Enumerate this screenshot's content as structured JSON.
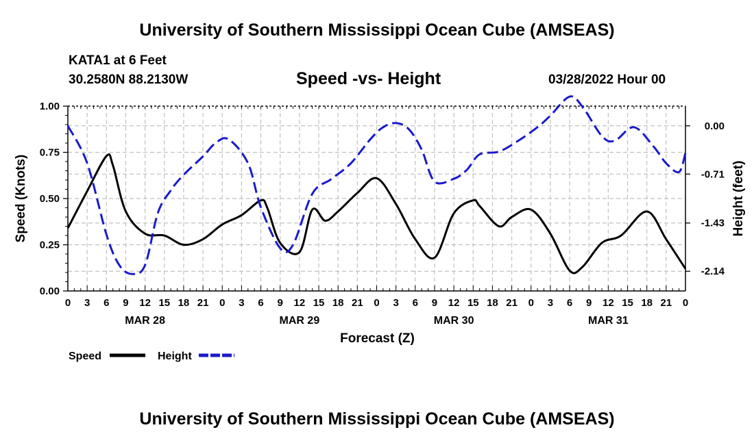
{
  "header": {
    "title": "University of Southern Mississippi Ocean Cube (AMSEAS)",
    "station": "KATA1 at 6 Feet",
    "coords": "30.2580N  88.2130W",
    "subtitle": "Speed -vs- Height",
    "date": "03/28/2022 Hour 00"
  },
  "footer": {
    "title": "University of Southern Mississippi Ocean Cube (AMSEAS)"
  },
  "chart_data": {
    "type": "line",
    "title": "Speed -vs- Height",
    "xlabel": "Forecast (Z)",
    "ylabel": "Speed (Knots)",
    "y2label": "Height (feet)",
    "xlim": [
      0,
      96
    ],
    "ylim": [
      0,
      1
    ],
    "y2lim": [
      -2.43,
      0.29
    ],
    "x_tick_step": 3,
    "x_tick_labels": [
      "0",
      "3",
      "6",
      "9",
      "12",
      "15",
      "18",
      "21",
      "0",
      "3",
      "6",
      "9",
      "12",
      "15",
      "18",
      "21",
      "0",
      "3",
      "6",
      "9",
      "12",
      "15",
      "18",
      "21",
      "0",
      "3",
      "6",
      "9",
      "12",
      "15",
      "18",
      "21",
      "0"
    ],
    "date_labels": [
      {
        "x": 12,
        "label": "MAR 28"
      },
      {
        "x": 36,
        "label": "MAR 29"
      },
      {
        "x": 60,
        "label": "MAR 30"
      },
      {
        "x": 84,
        "label": "MAR 31"
      }
    ],
    "y_ticks": [
      0.0,
      0.25,
      0.5,
      0.75,
      1.0
    ],
    "y_tick_labels": [
      "0.00",
      "0.25",
      "0.50",
      "0.75",
      "1.00"
    ],
    "y2_ticks": [
      0.0,
      -0.71,
      -1.43,
      -2.14
    ],
    "y2_tick_labels": [
      "0.00",
      "-0.71",
      "-1.43",
      "-2.14"
    ],
    "grid": true,
    "colors": {
      "speed": "#000000",
      "height": "#1a1acc",
      "grid": "#c0c0c0"
    },
    "legend": {
      "position": "bottom-left",
      "speed_label": "Speed",
      "height_label": "Height"
    },
    "series": [
      {
        "name": "Speed",
        "axis": "left",
        "style": "solid",
        "x": [
          0,
          3,
          6,
          7,
          9,
          12,
          15,
          18,
          21,
          24,
          27,
          30,
          31,
          33,
          36,
          38,
          40,
          42,
          45,
          48,
          51,
          54,
          57,
          60,
          63,
          64,
          67,
          69,
          72,
          75,
          78,
          80,
          83,
          86,
          90,
          93,
          96
        ],
        "y": [
          0.34,
          0.54,
          0.73,
          0.68,
          0.43,
          0.31,
          0.3,
          0.25,
          0.28,
          0.36,
          0.41,
          0.49,
          0.45,
          0.26,
          0.21,
          0.44,
          0.38,
          0.43,
          0.53,
          0.61,
          0.47,
          0.28,
          0.18,
          0.42,
          0.49,
          0.46,
          0.35,
          0.4,
          0.44,
          0.31,
          0.11,
          0.13,
          0.26,
          0.3,
          0.43,
          0.28,
          0.12
        ]
      },
      {
        "name": "Height",
        "axis": "right",
        "style": "dashed",
        "x": [
          0,
          3,
          6,
          8,
          10,
          12,
          14,
          16,
          18,
          21,
          23,
          25,
          28,
          30,
          33,
          35,
          38,
          41,
          44,
          47,
          49,
          51,
          53,
          55,
          57,
          60,
          62,
          64,
          67,
          70,
          73,
          75,
          78,
          80,
          83,
          85,
          88,
          91,
          93,
          95,
          96
        ],
        "y": [
          0.0,
          -0.55,
          -1.6,
          -2.05,
          -2.18,
          -2.05,
          -1.28,
          -0.95,
          -0.72,
          -0.45,
          -0.25,
          -0.2,
          -0.55,
          -1.2,
          -1.8,
          -1.75,
          -1.0,
          -0.78,
          -0.55,
          -0.2,
          -0.02,
          0.04,
          -0.05,
          -0.35,
          -0.82,
          -0.78,
          -0.65,
          -0.42,
          -0.38,
          -0.22,
          -0.02,
          0.15,
          0.43,
          0.28,
          -0.15,
          -0.22,
          -0.02,
          -0.3,
          -0.55,
          -0.68,
          -0.4
        ]
      }
    ]
  }
}
